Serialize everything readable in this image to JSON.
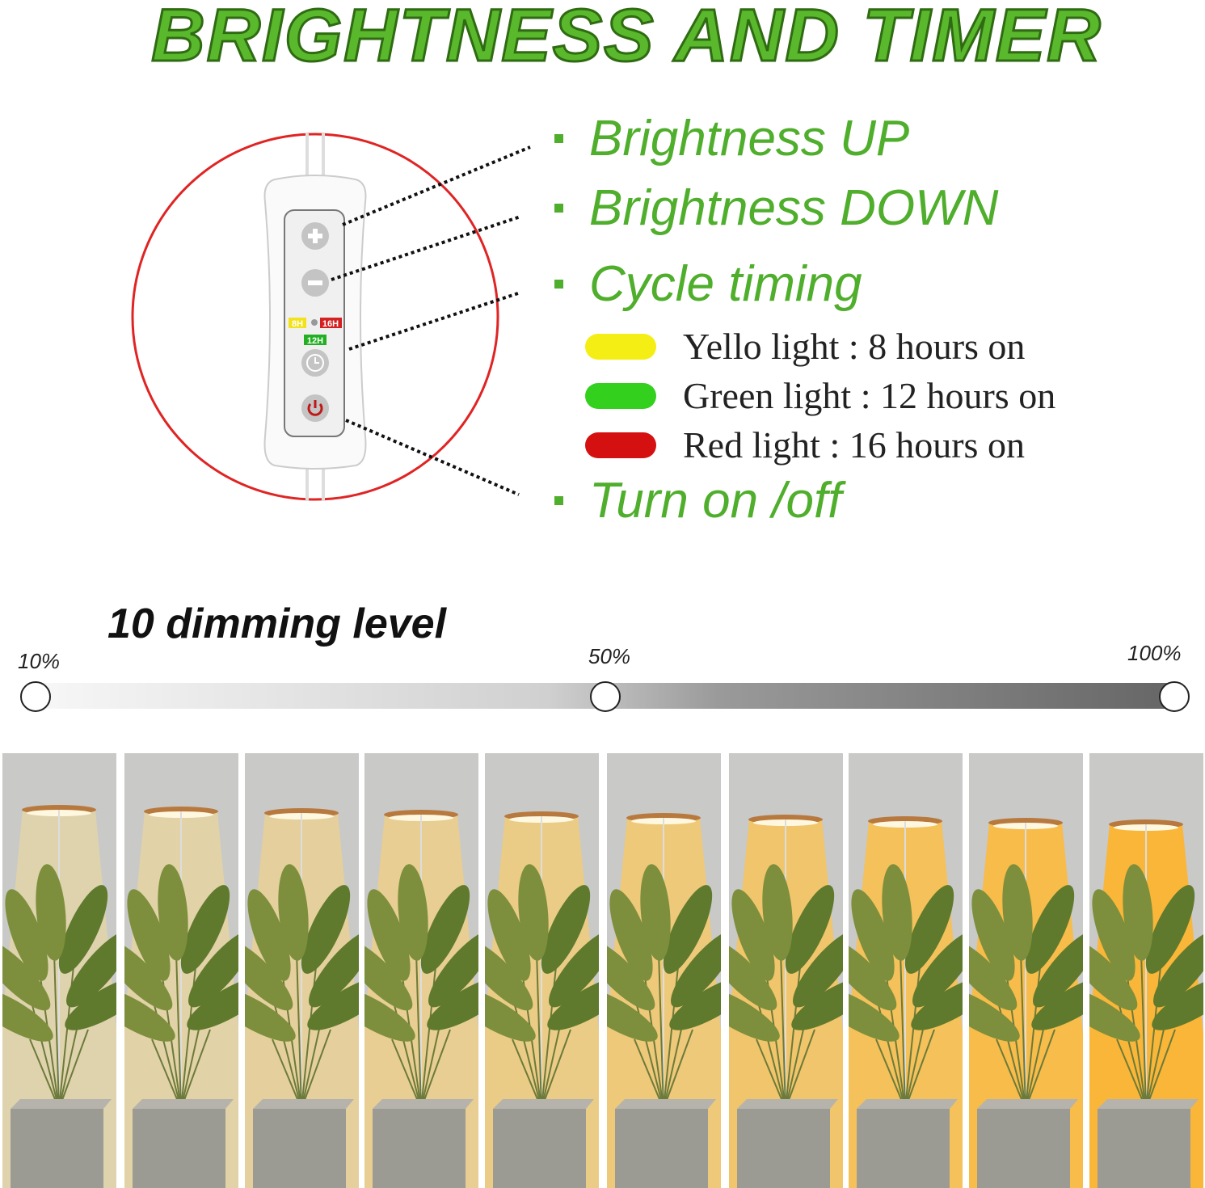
{
  "title": "BRIGHTNESS AND TIMER",
  "controller": {
    "timer_labels": [
      "8H",
      "16H",
      "12H"
    ],
    "timer_colors": [
      "#f2e21a",
      "#d42020",
      "#22b022"
    ],
    "ring_color": "#e02424"
  },
  "functions": [
    {
      "label": "Brightness UP"
    },
    {
      "label": "Brightness DOWN"
    },
    {
      "label": "Cycle timing"
    },
    {
      "label": "Turn on /off"
    }
  ],
  "timer_legend": [
    {
      "color": "#f5ee14",
      "text": "Yello light : 8 hours on"
    },
    {
      "color": "#33d11e",
      "text": "Green light : 12 hours on"
    },
    {
      "color": "#d41010",
      "text": "Red light : 16 hours on"
    }
  ],
  "dimming": {
    "title": "10 dimming level",
    "labels": [
      "10%",
      "50%",
      "100%"
    ],
    "levels": [
      10,
      20,
      30,
      40,
      50,
      60,
      70,
      80,
      90,
      100
    ]
  },
  "accent_color": "#4fae2b"
}
